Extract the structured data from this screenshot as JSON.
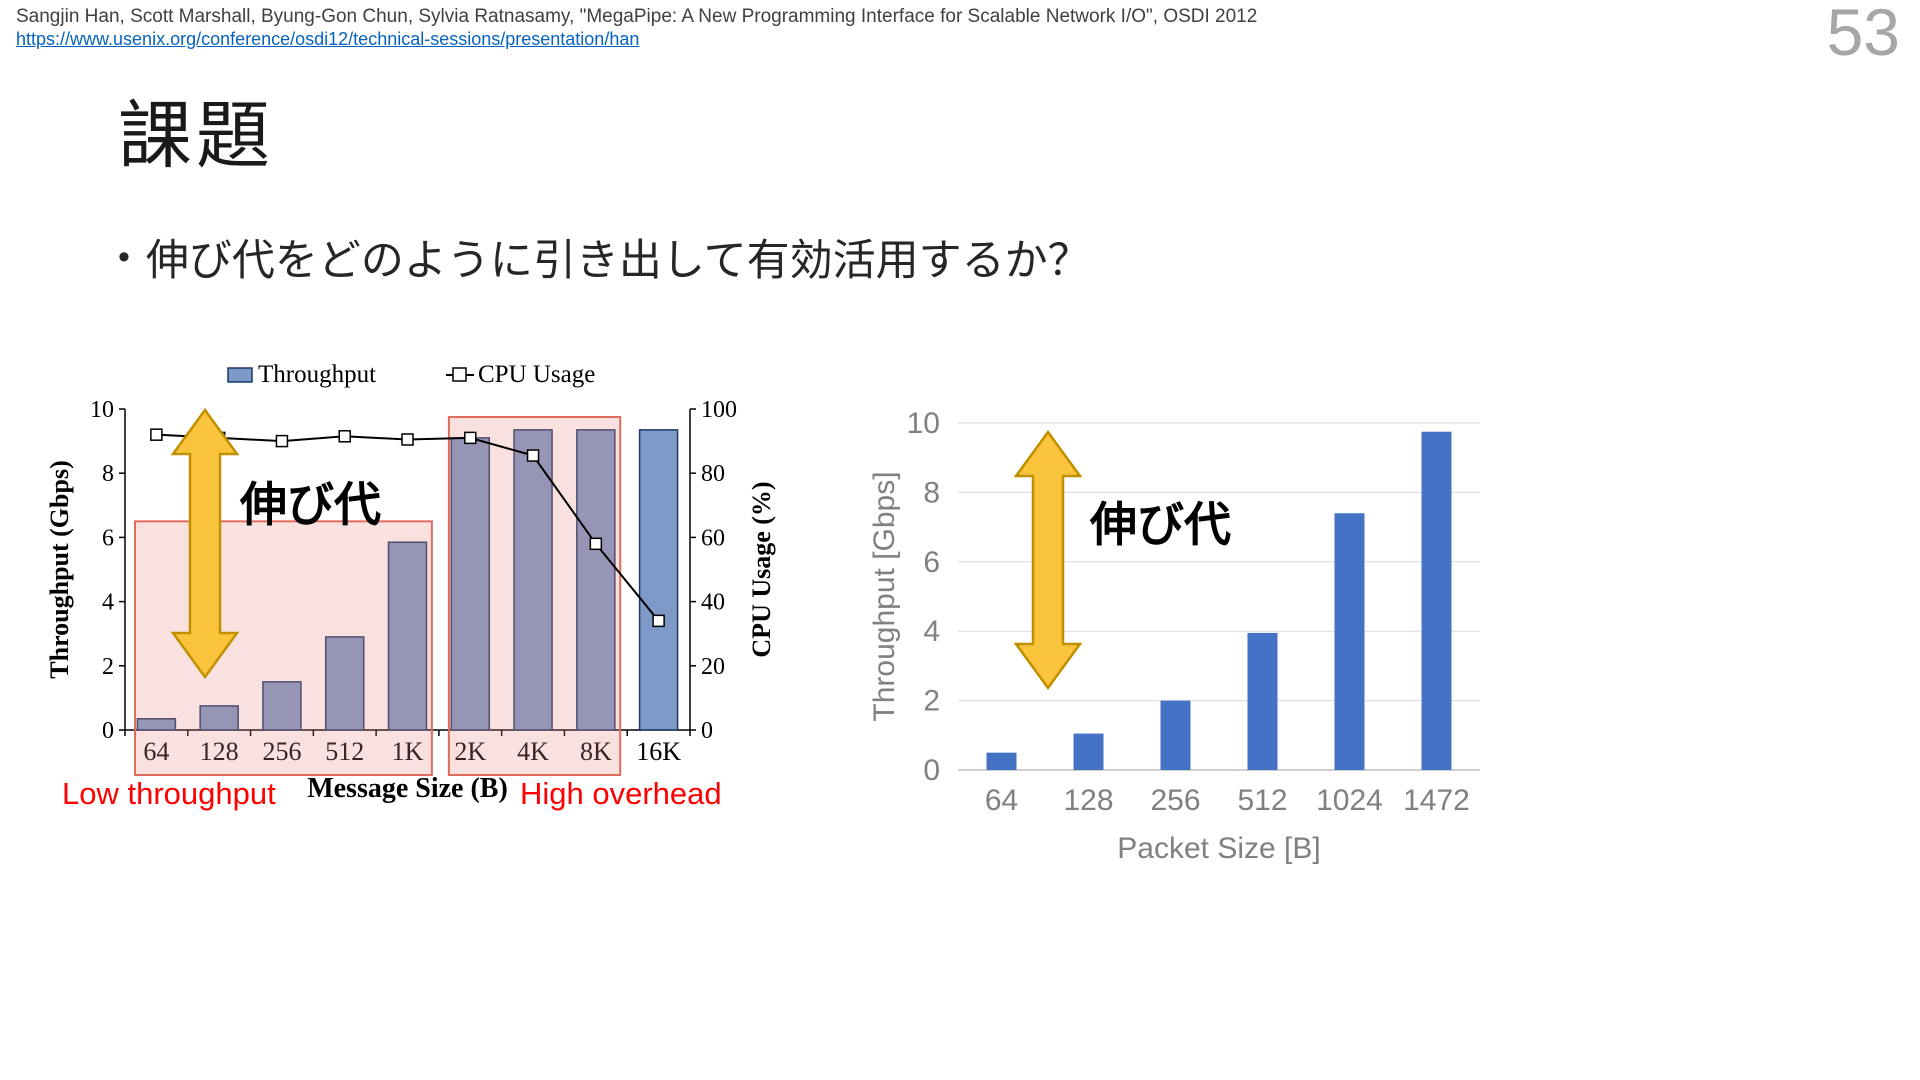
{
  "header": {
    "citation": "Sangjin Han, Scott Marshall, Byung-Gon Chun, Sylvia Ratnasamy, \"MegaPipe: A New Programming Interface for Scalable Network I/O\", OSDI 2012",
    "link": "https://www.usenix.org/conference/osdi12/technical-sessions/presentation/han",
    "page_number": "53"
  },
  "slide": {
    "title": "課題",
    "bullet_marker": "•",
    "bullet": "伸び代をどのように引き出して有効活用するか？"
  },
  "annotations": {
    "left_gap_label": "伸び代",
    "right_gap_label": "伸び代",
    "low_throughput": "Low throughput",
    "high_overhead": "High overhead"
  },
  "colors": {
    "bar_left": "#7D99C7",
    "bar_left_border": "#1F3864",
    "bar_right": "#4472C4",
    "highlight_fill": "rgba(228,140,130,0.26)",
    "highlight_border": "#E06C5E",
    "arrow_fill": "#FAC33C",
    "arrow_border": "#BF9000",
    "red_text": "#FF0000",
    "link": "#0563C1",
    "gray_text": "#808080",
    "grid": "#D9D9D9",
    "grid_strong": "#BFBFBF",
    "page_number": "#A6A6A6",
    "citation": "#404040"
  },
  "chart_data": [
    {
      "type": "bar+line",
      "title": "",
      "categories": [
        "64",
        "128",
        "256",
        "512",
        "1K",
        "2K",
        "4K",
        "8K",
        "16K"
      ],
      "series": [
        {
          "name": "Throughput",
          "type": "bar",
          "axis": "left",
          "values": [
            0.35,
            0.75,
            1.5,
            2.9,
            5.85,
            9.1,
            9.35,
            9.35,
            9.35
          ]
        },
        {
          "name": "CPU Usage",
          "type": "line",
          "axis": "right",
          "values": [
            92,
            91,
            90,
            91.5,
            90.5,
            91,
            85.5,
            58,
            34
          ]
        }
      ],
      "xlabel": "Message Size (B)",
      "ylabel_left": "Throughput (Gbps)",
      "ylabel_right": "CPU Usage (%)",
      "ylim_left": [
        0,
        10
      ],
      "ylim_right": [
        0,
        100
      ],
      "yticks_left": [
        0,
        2,
        4,
        6,
        8,
        10
      ],
      "yticks_right": [
        0,
        20,
        40,
        60,
        80,
        100
      ],
      "legend": [
        "Throughput",
        "CPU Usage"
      ],
      "legend_position": "top",
      "grid": false,
      "highlights": [
        {
          "label": "Low throughput",
          "from_index": 0,
          "to_index": 4,
          "top_value": 6.5
        },
        {
          "label": "High overhead",
          "from_index": 5,
          "to_index": 7,
          "top_value": 9.75
        }
      ]
    },
    {
      "type": "bar",
      "title": "",
      "categories": [
        "64",
        "128",
        "256",
        "512",
        "1024",
        "1472"
      ],
      "values": [
        0.5,
        1.05,
        2.0,
        3.95,
        7.4,
        9.75
      ],
      "xlabel": "Packet Size [B]",
      "ylabel": "Throughput [Gbps]",
      "ylim": [
        0,
        10
      ],
      "yticks": [
        0,
        2,
        4,
        6,
        8,
        10
      ],
      "grid": true,
      "legend_position": "none"
    }
  ]
}
